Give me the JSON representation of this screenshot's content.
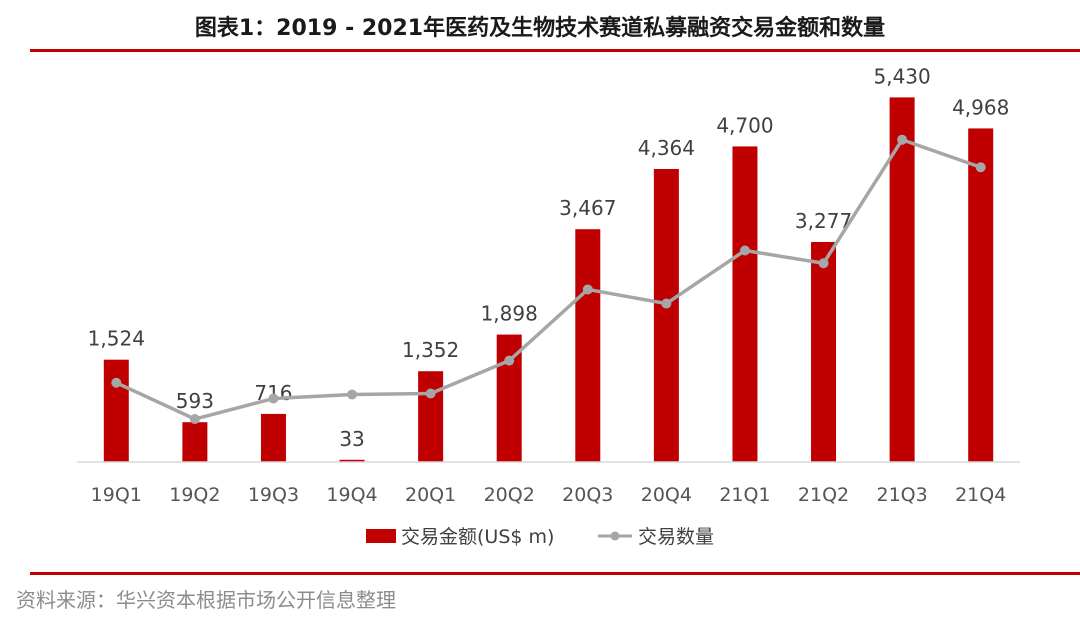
{
  "title": "图表1：2019 - 2021年医药及生物技术赛道私募融资交易金额和数量",
  "source": "资料来源：华兴资本根据市场公开信息整理",
  "colors": {
    "bar": "#c00000",
    "line": "#a6a6a6",
    "rule": "#c00000"
  },
  "chart_data": {
    "type": "bar",
    "categories": [
      "19Q1",
      "19Q2",
      "19Q3",
      "19Q4",
      "20Q1",
      "20Q2",
      "20Q3",
      "20Q4",
      "21Q1",
      "21Q2",
      "21Q3",
      "21Q4"
    ],
    "ylim": [
      0,
      5600
    ],
    "grid": false,
    "legend_position": "bottom",
    "series": [
      {
        "name": "交易金额(US$ m)",
        "type": "bar",
        "values": [
          1524,
          593,
          716,
          33,
          1352,
          1898,
          3467,
          4364,
          4700,
          3277,
          5430,
          4968
        ],
        "labels": [
          "1,524",
          "593",
          "716",
          "33",
          "1,352",
          "1,898",
          "3,467",
          "4,364",
          "4,700",
          "3,277",
          "5,430",
          "4,968"
        ]
      },
      {
        "name": "交易数量",
        "type": "line",
        "values": [
          1180,
          640,
          945,
          1005,
          1020,
          1510,
          2570,
          2360,
          3150,
          2960,
          4800,
          4390
        ]
      }
    ]
  }
}
